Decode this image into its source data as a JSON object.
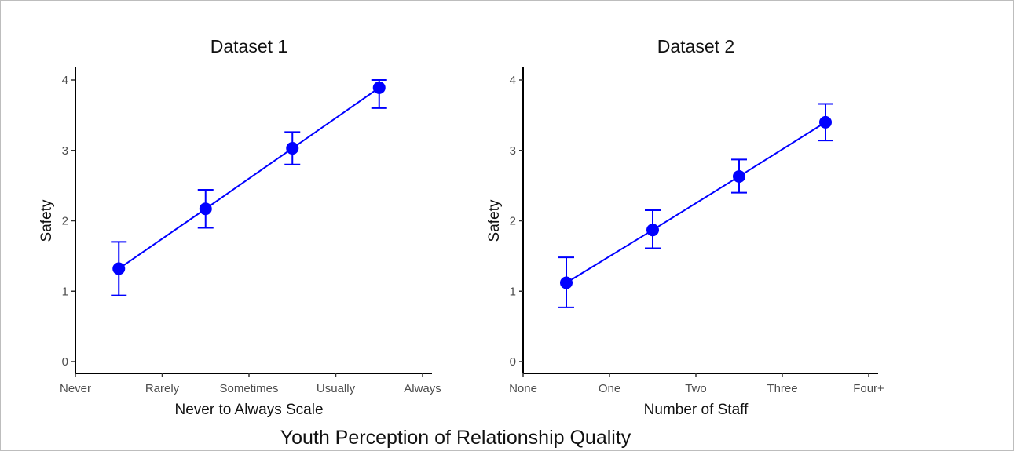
{
  "figure": {
    "caption": "Youth Perception of Relationship Quality",
    "marker_color": "#0000ff"
  },
  "chart_data": [
    {
      "type": "line",
      "title": "Dataset 1",
      "xlabel": "Never to Always Scale",
      "ylabel": "Safety",
      "categories": [
        "Never",
        "Rarely",
        "Sometimes",
        "Usually",
        "Always"
      ],
      "x": [
        1.5,
        2.5,
        3.5,
        4.5
      ],
      "values": [
        1.32,
        2.17,
        3.03,
        3.89
      ],
      "error_low": [
        0.94,
        1.9,
        2.8,
        3.6
      ],
      "error_high": [
        1.7,
        2.44,
        3.26,
        4.0
      ],
      "ylim": [
        0,
        4
      ],
      "yticks": [
        0,
        1,
        2,
        3,
        4
      ],
      "grid": false
    },
    {
      "type": "line",
      "title": "Dataset 2",
      "xlabel": "Number of Staff",
      "ylabel": "Safety",
      "categories": [
        "None",
        "One",
        "Two",
        "Three",
        "Four+"
      ],
      "x": [
        1.5,
        2.5,
        3.5,
        4.5
      ],
      "values": [
        1.12,
        1.87,
        2.63,
        3.4
      ],
      "error_low": [
        0.77,
        1.61,
        2.4,
        3.14
      ],
      "error_high": [
        1.48,
        2.15,
        2.87,
        3.66
      ],
      "ylim": [
        0,
        4
      ],
      "yticks": [
        0,
        1,
        2,
        3,
        4
      ],
      "grid": false
    }
  ]
}
